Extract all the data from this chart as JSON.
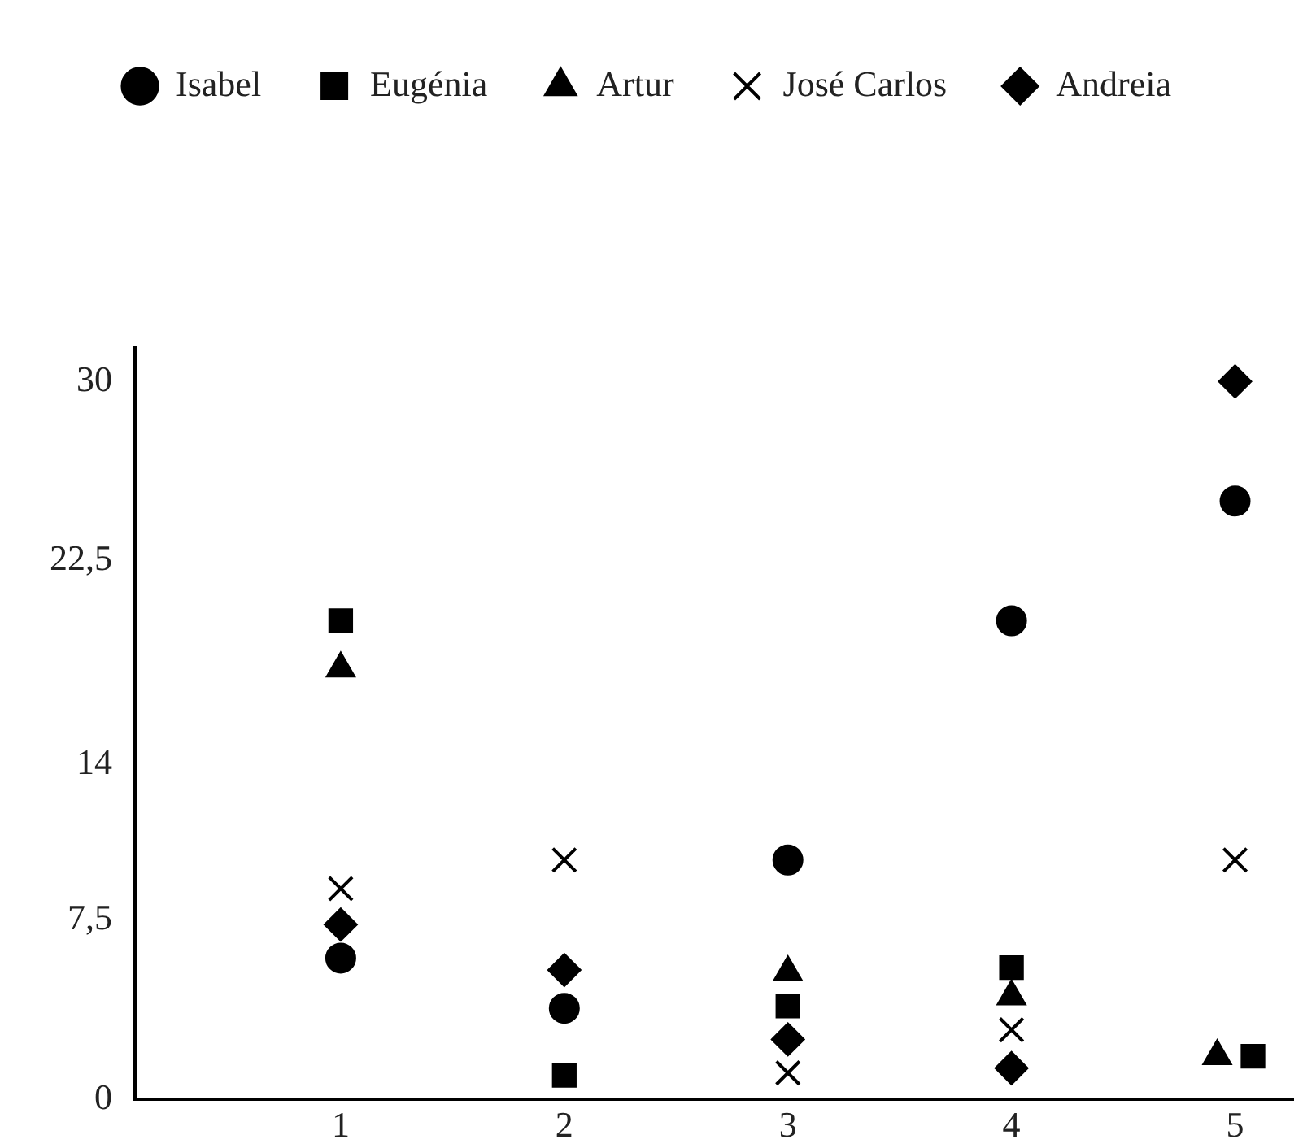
{
  "chart_data": {
    "type": "scatter",
    "legend": "top",
    "grid": false,
    "xlim": [
      0.08,
      5.26
    ],
    "xticks": [
      1,
      2,
      3,
      4,
      5
    ],
    "ylim": [
      0,
      31.4
    ],
    "yticks": [
      0,
      {
        "value": 7.5,
        "label": "7,5"
      },
      14,
      {
        "value": 22.5,
        "label": "22,5"
      },
      30
    ],
    "series": [
      {
        "name": "Isabel",
        "color": "#000000",
        "marker": "circle",
        "x": [
          1,
          2,
          3,
          4,
          5
        ],
        "values": [
          5.9,
          3.8,
          10,
          20,
          25
        ]
      },
      {
        "name": "Eugénia",
        "color": "#000000",
        "marker": "square",
        "x": [
          1,
          2,
          3,
          4,
          5.08
        ],
        "values": [
          20,
          1,
          3.9,
          5.5,
          1.8
        ]
      },
      {
        "name": "Artur",
        "color": "#000000",
        "marker": "triangle",
        "x": [
          1,
          2,
          3,
          4,
          4.92
        ],
        "values": [
          18,
          null,
          5.3,
          4.3,
          1.8
        ]
      },
      {
        "name": "José Carlos",
        "color": "#000000",
        "marker": "cross",
        "x": [
          1,
          2,
          3,
          4,
          5
        ],
        "values": [
          8.8,
          10,
          1.1,
          2.9,
          10
        ]
      },
      {
        "name": "Andreia",
        "color": "#000000",
        "marker": "diamond",
        "x": [
          1,
          2,
          3,
          4,
          5
        ],
        "values": [
          7.3,
          5.4,
          2.5,
          1.3,
          30
        ]
      }
    ]
  }
}
